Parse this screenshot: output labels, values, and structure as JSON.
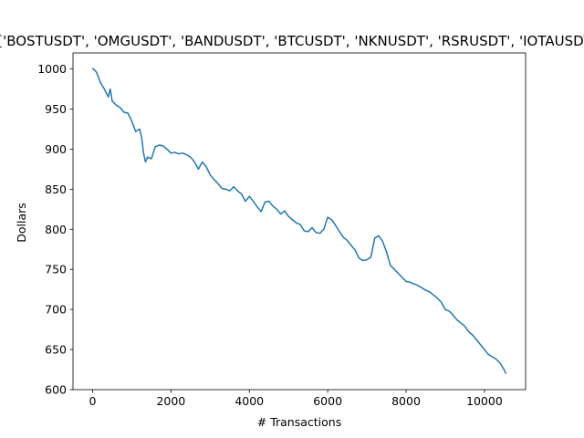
{
  "chart_data": {
    "type": "line",
    "title": "['BOSTUSDT', 'OMGUSDT', 'BANDUSDT', 'BTCUSDT', 'NKNUSDT', 'RSRUSDT', 'IOTAUSDT']",
    "xlabel": "# Transactions",
    "ylabel": "Dollars",
    "xlim": [
      -500,
      11050
    ],
    "ylim": [
      600,
      1020
    ],
    "xticks": [
      0,
      2000,
      4000,
      6000,
      8000,
      10000
    ],
    "yticks": [
      600,
      650,
      700,
      750,
      800,
      850,
      900,
      950,
      1000
    ],
    "grid": false,
    "series": [
      {
        "color": "#1f77b4",
        "x": [
          0,
          100,
          200,
          300,
          400,
          450,
          500,
          600,
          700,
          800,
          900,
          1000,
          1100,
          1200,
          1250,
          1300,
          1350,
          1400,
          1500,
          1600,
          1700,
          1800,
          1900,
          2000,
          2100,
          2200,
          2300,
          2400,
          2500,
          2600,
          2700,
          2800,
          2900,
          3000,
          3100,
          3200,
          3300,
          3400,
          3500,
          3600,
          3700,
          3800,
          3900,
          4000,
          4100,
          4200,
          4300,
          4400,
          4500,
          4600,
          4700,
          4800,
          4900,
          5000,
          5100,
          5200,
          5300,
          5400,
          5500,
          5600,
          5700,
          5800,
          5900,
          6000,
          6100,
          6200,
          6300,
          6400,
          6500,
          6600,
          6700,
          6800,
          6900,
          7000,
          7100,
          7200,
          7300,
          7400,
          7500,
          7600,
          7700,
          7800,
          7900,
          8000,
          8100,
          8200,
          8300,
          8400,
          8500,
          8600,
          8700,
          8800,
          8900,
          9000,
          9100,
          9200,
          9300,
          9400,
          9500,
          9600,
          9700,
          9800,
          9900,
          10000,
          10100,
          10200,
          10300,
          10400,
          10500,
          10550
        ],
        "y": [
          1001,
          996,
          983,
          975,
          965,
          975,
          960,
          955,
          952,
          946,
          945,
          935,
          922,
          925,
          915,
          895,
          884,
          890,
          888,
          903,
          905,
          904,
          900,
          895,
          896,
          894,
          895,
          893,
          890,
          884,
          875,
          884,
          878,
          868,
          862,
          857,
          851,
          850,
          848,
          853,
          848,
          844,
          835,
          841,
          835,
          828,
          822,
          834,
          835,
          829,
          825,
          819,
          823,
          816,
          812,
          808,
          806,
          798,
          797,
          802,
          796,
          795,
          800,
          815,
          812,
          805,
          797,
          790,
          786,
          780,
          774,
          764,
          761,
          762,
          765,
          789,
          792,
          785,
          772,
          755,
          750,
          745,
          740,
          735,
          734,
          732,
          730,
          727,
          724,
          722,
          718,
          714,
          709,
          700,
          698,
          693,
          687,
          683,
          679,
          672,
          668,
          662,
          656,
          650,
          644,
          641,
          638,
          633,
          625,
          620
        ]
      }
    ]
  }
}
